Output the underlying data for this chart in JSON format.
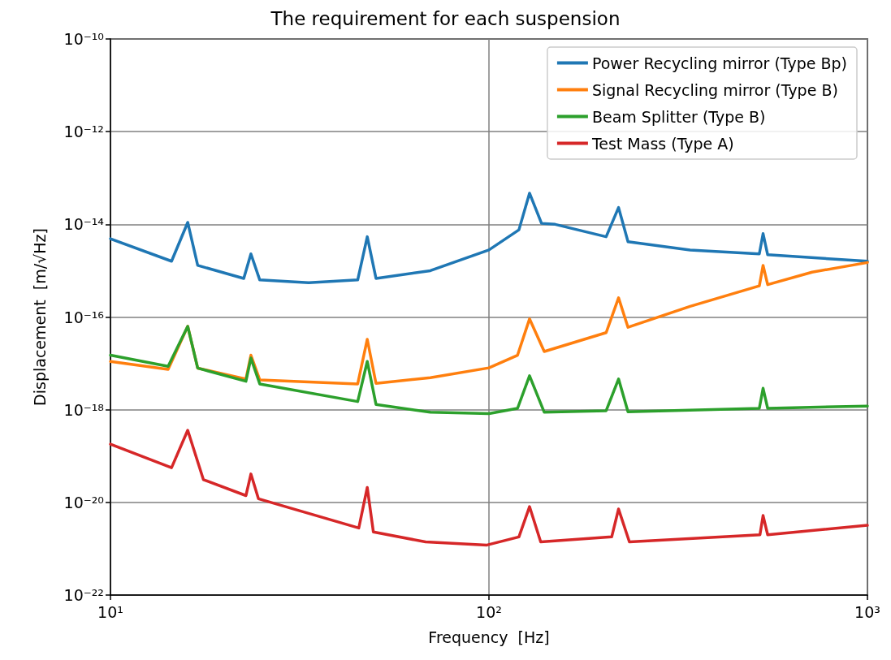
{
  "chart_data": {
    "type": "line",
    "title": "The requirement for each suspension",
    "xlabel": "Frequency  [Hz]",
    "ylabel": "Displacement  [m/√Hz]",
    "log": "xy",
    "grid": true,
    "legend": "top right",
    "marker": "none",
    "line_style": "solid",
    "xlim": [
      10,
      1000
    ],
    "xticks": [
      {
        "value": 10,
        "label": "10¹"
      },
      {
        "value": 100,
        "label": "10²"
      },
      {
        "value": 1000,
        "label": "10³"
      }
    ],
    "ylim": [
      1e-22,
      1e-10
    ],
    "yticks": [
      {
        "value": 1e-22,
        "label": "10⁻²²"
      },
      {
        "value": 1e-20,
        "label": "10⁻²⁰"
      },
      {
        "value": 1e-18,
        "label": "10⁻¹⁸"
      },
      {
        "value": 1e-16,
        "label": "10⁻¹⁶"
      },
      {
        "value": 1e-14,
        "label": "10⁻¹⁴"
      },
      {
        "value": 1e-12,
        "label": "10⁻¹²"
      },
      {
        "value": 1e-10,
        "label": "10⁻¹⁰"
      }
    ],
    "series": [
      {
        "name": "Power Recycling mirror (Type Bp)",
        "color": "#1f77b4",
        "x": [
          10,
          14.5,
          16,
          17,
          22.5,
          23.5,
          24.8,
          33.4,
          45,
          47.7,
          50.3,
          70,
          100,
          120,
          128,
          137.7,
          149.6,
          204,
          220,
          233,
          340,
          518,
          530,
          545,
          1000
        ],
        "values": [
          4.9e-15,
          1.6e-15,
          1.1e-14,
          1.3e-15,
          6.8e-16,
          2.3e-15,
          6.3e-16,
          5.5e-16,
          6.3e-16,
          5.4e-15,
          6.8e-16,
          1e-15,
          2.8e-15,
          7.6e-15,
          4.7e-14,
          1.05e-14,
          1e-14,
          5.4e-15,
          2.3e-14,
          4.2e-15,
          2.8e-15,
          2.3e-15,
          6.3e-15,
          2.2e-15,
          1.6e-15
        ]
      },
      {
        "name": "Signal Recycling mirror (Type B)",
        "color": "#ff7f0e",
        "x": [
          10,
          14.2,
          16,
          17,
          22.8,
          23.5,
          24.8,
          45,
          47.7,
          50.3,
          70,
          100,
          119,
          128,
          140,
          204,
          220,
          233,
          340,
          518,
          530,
          545,
          714,
          1000
        ],
        "values": [
          1.1e-17,
          7.4e-18,
          6.3e-17,
          7.9e-18,
          4.6e-18,
          1.5e-17,
          4.4e-18,
          3.6e-18,
          3.3e-17,
          3.7e-18,
          4.9e-18,
          8e-18,
          1.5e-17,
          9.1e-17,
          1.8e-17,
          4.6e-17,
          2.6e-16,
          6e-17,
          1.7e-16,
          4.7e-16,
          1.3e-15,
          5e-16,
          9.3e-16,
          1.5e-15
        ]
      },
      {
        "name": "Beam Splitter (Type B)",
        "color": "#2ca02c",
        "x": [
          10,
          14.2,
          16,
          17,
          22.8,
          23.5,
          24.8,
          45,
          47.7,
          50.3,
          70,
          100,
          119,
          128,
          140,
          204,
          220,
          233,
          518,
          530,
          545,
          1000
        ],
        "values": [
          1.5e-17,
          8.6e-18,
          6.3e-17,
          7.9e-18,
          4.1e-18,
          1.3e-17,
          3.6e-18,
          1.5e-18,
          1.1e-17,
          1.3e-18,
          8.8e-19,
          8.2e-19,
          1.07e-18,
          5.4e-18,
          8.8e-19,
          9.5e-19,
          4.6e-18,
          9e-19,
          1.07e-18,
          2.9e-18,
          1.07e-18,
          1.2e-18
        ]
      },
      {
        "name": "Test Mass (Type A)",
        "color": "#d62728",
        "x": [
          10,
          14.5,
          16,
          17.6,
          22.8,
          23.5,
          24.6,
          45.3,
          47.7,
          49.5,
          68,
          98.8,
          120,
          128,
          137,
          211,
          220,
          235,
          520,
          530,
          545,
          1000
        ],
        "values": [
          1.8e-19,
          5.6e-20,
          3.6e-19,
          3.1e-20,
          1.4e-20,
          4.1e-20,
          1.2e-20,
          2.8e-21,
          2.1e-20,
          2.3e-21,
          1.4e-21,
          1.2e-21,
          1.8e-21,
          8.1e-21,
          1.4e-21,
          1.8e-21,
          7.2e-21,
          1.4e-21,
          2e-21,
          5.2e-21,
          2e-21,
          3.2e-21
        ]
      }
    ]
  }
}
